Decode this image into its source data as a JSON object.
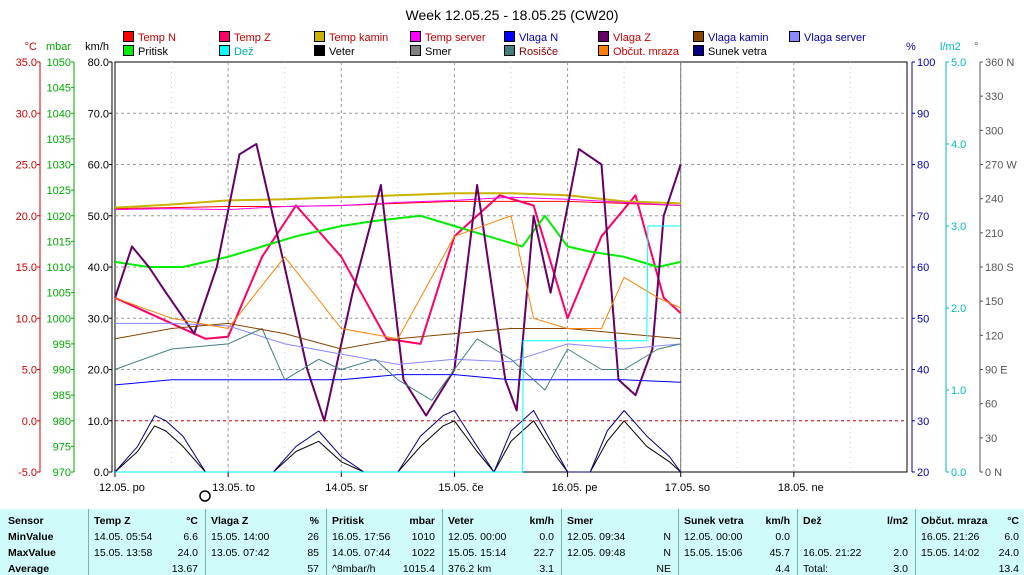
{
  "chart_data": {
    "type": "line",
    "title": "Week 12.05.25 - 18.05.25 (CW20)",
    "x_ticks": [
      "12.05. po",
      "13.05. to",
      "14.05. sr",
      "15.05. če",
      "16.05. pe",
      "17.05. so",
      "18.05. ne"
    ],
    "left_axes": [
      {
        "unit": "°C",
        "color": "#cc0000",
        "ticks": [
          "35.0",
          "30.0",
          "25.0",
          "20.0",
          "15.0",
          "10.0",
          "5.0",
          "0.0",
          "-5.0"
        ]
      },
      {
        "unit": "mbar",
        "color": "#00aa00",
        "ticks": [
          "1050",
          "1045",
          "1040",
          "1035",
          "1030",
          "1025",
          "1020",
          "1015",
          "1010",
          "1005",
          "1000",
          "995",
          "990",
          "985",
          "980",
          "975",
          "970"
        ]
      },
      {
        "unit": "km/h",
        "color": "#000000",
        "ticks": [
          "80.0",
          "70.0",
          "60.0",
          "50.0",
          "40.0",
          "30.0",
          "20.0",
          "10.0",
          "0.0"
        ]
      }
    ],
    "right_axes": [
      {
        "unit": "%",
        "color": "#0000aa",
        "ticks": [
          "100",
          "90",
          "80",
          "70",
          "60",
          "50",
          "40",
          "30",
          "20"
        ]
      },
      {
        "unit": "l/m2",
        "color": "#00bbbb",
        "ticks": [
          "5.0",
          "4.0",
          "3.0",
          "2.0",
          "1.0",
          "0.0"
        ]
      },
      {
        "unit": "°",
        "color": "#555555",
        "ticks": [
          "360 N",
          "330",
          "300",
          "270 W",
          "240",
          "210",
          "180 S",
          "150",
          "120",
          "90 E",
          "60",
          "30",
          "0 N"
        ]
      }
    ],
    "legend": [
      {
        "name": "Temp N",
        "color": "#ff0000"
      },
      {
        "name": "Temp Z",
        "color": "#ff0066"
      },
      {
        "name": "Temp kamin",
        "color": "#c8b400"
      },
      {
        "name": "Temp server",
        "color": "#ff00ff"
      },
      {
        "name": "Vlaga N",
        "color": "#0000ff"
      },
      {
        "name": "Vlaga Z",
        "color": "#660066"
      },
      {
        "name": "Vlaga kamin",
        "color": "#884400"
      },
      {
        "name": "Vlaga server",
        "color": "#8888ff"
      },
      {
        "name": "Pritisk",
        "color": "#00ee00"
      },
      {
        "name": "Dež",
        "color": "#00ffff"
      },
      {
        "name": "Veter",
        "color": "#000000"
      },
      {
        "name": "Smer",
        "color": "#808080"
      },
      {
        "name": "Rosišče",
        "color": "#408080"
      },
      {
        "name": "Občut. mraza",
        "color": "#ff8000"
      },
      {
        "name": "Sunek vetra",
        "color": "#000080"
      }
    ],
    "x_days": 7,
    "series": [
      {
        "name": "Temp N",
        "axis": "temp",
        "color": "#ff0000",
        "x": [
          0,
          0.5,
          1,
          1.5,
          2,
          2.5,
          3,
          3.5,
          4,
          4.5,
          5
        ],
        "y": [
          20.7,
          20.8,
          20.9,
          20.9,
          21.0,
          21.2,
          21.4,
          21.4,
          21.4,
          21.2,
          21.0
        ]
      },
      {
        "name": "Temp Z",
        "axis": "temp",
        "color": "#ff0066",
        "x": [
          0,
          0.4,
          0.8,
          1.0,
          1.3,
          1.6,
          2.0,
          2.4,
          2.7,
          3.0,
          3.4,
          3.7,
          4.0,
          4.3,
          4.6,
          4.85,
          5.0
        ],
        "y": [
          12,
          10,
          8,
          8.2,
          16,
          21,
          16,
          8,
          7.5,
          18,
          22,
          21,
          10,
          18,
          22,
          12,
          10.5
        ]
      },
      {
        "name": "Temp kamin",
        "axis": "temp",
        "color": "#c8b400",
        "x": [
          0,
          0.5,
          1,
          1.5,
          2,
          2.5,
          3,
          3.5,
          4,
          4.5,
          5
        ],
        "y": [
          20.8,
          21.1,
          21.5,
          21.6,
          21.8,
          22.0,
          22.2,
          22.2,
          22.0,
          21.4,
          21.2
        ]
      },
      {
        "name": "Temp server",
        "axis": "temp",
        "color": "#ff00ff",
        "x": [
          0,
          0.5,
          1,
          1.5,
          2,
          2.5,
          3,
          3.5,
          4,
          4.5,
          5
        ],
        "y": [
          20.6,
          20.7,
          20.6,
          20.9,
          21.0,
          21.3,
          21.5,
          21.8,
          21.6,
          21.3,
          21.0
        ]
      },
      {
        "name": "Pritisk",
        "axis": "mbar",
        "color": "#00ee00",
        "x": [
          0,
          0.3,
          0.6,
          1.0,
          1.3,
          1.6,
          2.0,
          2.3,
          2.7,
          3.0,
          3.3,
          3.6,
          3.8,
          4.0,
          4.2,
          4.5,
          4.8,
          5.0
        ],
        "y": [
          1011,
          1010,
          1010,
          1012,
          1014,
          1016,
          1018,
          1019,
          1020,
          1018,
          1016,
          1014,
          1020,
          1014,
          1013,
          1012,
          1010,
          1011
        ]
      },
      {
        "name": "Vlaga Z",
        "axis": "hum",
        "color": "#660066",
        "x": [
          0,
          0.15,
          0.3,
          0.45,
          0.7,
          0.9,
          1.1,
          1.25,
          1.5,
          1.7,
          1.85,
          2.1,
          2.35,
          2.55,
          2.75,
          3.0,
          3.2,
          3.45,
          3.55,
          3.7,
          3.85,
          4.1,
          4.3,
          4.45,
          4.6,
          4.75,
          4.85,
          5.0
        ],
        "y": [
          54,
          64,
          60,
          55,
          47,
          60,
          82,
          84,
          60,
          40,
          30,
          55,
          76,
          38,
          31,
          40,
          76,
          38,
          32,
          70,
          55,
          83,
          80,
          38,
          35,
          44,
          70,
          80
        ]
      },
      {
        "name": "Veter",
        "axis": "wind",
        "color": "#000000",
        "x": [
          0,
          0.2,
          0.35,
          0.45,
          0.6,
          0.8,
          1.0,
          1.2,
          1.4,
          1.6,
          1.8,
          2.0,
          2.2,
          2.35,
          2.5,
          2.7,
          2.9,
          3.0,
          3.2,
          3.35,
          3.5,
          3.7,
          3.9,
          4.0,
          4.2,
          4.35,
          4.5,
          4.7,
          4.9,
          5.0
        ],
        "y": [
          0,
          4,
          9,
          8,
          5,
          0,
          0,
          0,
          0,
          4,
          6,
          2,
          0,
          0,
          0,
          5,
          9,
          10,
          4,
          0,
          6,
          10,
          3,
          0,
          0,
          6,
          10,
          5,
          2,
          0
        ]
      },
      {
        "name": "Sunek vetra",
        "axis": "wind",
        "color": "#000080",
        "x": [
          0,
          0.2,
          0.35,
          0.45,
          0.6,
          0.8,
          1.0,
          1.2,
          1.4,
          1.6,
          1.8,
          2.0,
          2.2,
          2.35,
          2.5,
          2.7,
          2.9,
          3.0,
          3.2,
          3.35,
          3.5,
          3.7,
          3.9,
          4.0,
          4.2,
          4.35,
          4.5,
          4.7,
          4.9,
          5.0
        ],
        "y": [
          0,
          5,
          11,
          10,
          7,
          0,
          0,
          0,
          0,
          5,
          8,
          3,
          0,
          0,
          0,
          7,
          11,
          12,
          5,
          0,
          8,
          12,
          4,
          0,
          0,
          8,
          12,
          7,
          3,
          0
        ]
      },
      {
        "name": "Vlaga N",
        "axis": "hum",
        "color": "#0000ff",
        "x": [
          0,
          0.5,
          1,
          1.5,
          2,
          2.5,
          3,
          3.5,
          4,
          4.5,
          5
        ],
        "y": [
          37,
          38,
          38,
          38,
          38,
          39,
          39,
          38,
          38,
          38,
          37.5
        ]
      },
      {
        "name": "Vlaga server",
        "axis": "hum",
        "color": "#8888ff",
        "x": [
          0,
          0.5,
          1,
          1.5,
          2,
          2.5,
          3,
          3.5,
          4,
          4.5,
          5
        ],
        "y": [
          49,
          49,
          48.5,
          45,
          43,
          41,
          42,
          41.5,
          45,
          44,
          45
        ]
      },
      {
        "name": "Rosišče",
        "axis": "temp",
        "color": "#408080",
        "x": [
          0,
          0.5,
          1,
          1.3,
          1.5,
          1.8,
          2.0,
          2.3,
          2.5,
          2.8,
          3.0,
          3.2,
          3.5,
          3.8,
          4.0,
          4.3,
          4.5,
          4.8,
          5.0
        ],
        "y": [
          5,
          7,
          7.5,
          9,
          4,
          6,
          5,
          6,
          4,
          2,
          5,
          8,
          6,
          3,
          7,
          5,
          5,
          7,
          7.5
        ]
      },
      {
        "name": "Vlaga kamin",
        "axis": "hum",
        "color": "#884400",
        "x": [
          0,
          0.5,
          1,
          1.5,
          2,
          2.5,
          3,
          3.5,
          4,
          4.5,
          5
        ],
        "y": [
          46,
          48,
          49,
          47,
          44,
          46,
          47,
          48,
          48,
          47,
          46
        ]
      },
      {
        "name": "Občut. mraza",
        "axis": "temp",
        "color": "#ff8000",
        "x": [
          0,
          0.5,
          1,
          1.5,
          2,
          2.5,
          3,
          3.5,
          3.7,
          4,
          4.3,
          4.5,
          4.8,
          5.0
        ],
        "y": [
          12,
          10,
          9,
          16,
          9,
          8,
          18,
          20,
          10,
          9,
          9,
          14,
          12,
          11
        ]
      },
      {
        "name": "Dež",
        "axis": "rain",
        "color": "#00ffff",
        "x": [
          0,
          3.6,
          3.61,
          4.0,
          4.4,
          4.7,
          4.71,
          5.0
        ],
        "y": [
          0,
          0,
          1.6,
          1.6,
          1.6,
          1.6,
          3.0,
          3.0
        ]
      }
    ],
    "now_x": 5.0
  },
  "stats": {
    "row_labels": [
      "Sensor",
      "MinValue",
      "MaxValue",
      "Average"
    ],
    "columns": [
      {
        "name": "Temp Z",
        "unit": "°C",
        "rows": [
          [
            "14.05.  05:54",
            "6.6"
          ],
          [
            "15.05.  13:58",
            "24.0"
          ],
          [
            "",
            "13.67"
          ]
        ]
      },
      {
        "name": "Vlaga Z",
        "unit": "%",
        "rows": [
          [
            "15.05.  14:00",
            "26"
          ],
          [
            "13.05.  07:42",
            "85"
          ],
          [
            "",
            "57"
          ]
        ]
      },
      {
        "name": "Pritisk",
        "unit": "mbar",
        "rows": [
          [
            "16.05.  17:56",
            "1010"
          ],
          [
            "14.05.  07:44",
            "1022"
          ],
          [
            "^8mbar/h",
            "1015.4"
          ]
        ]
      },
      {
        "name": "Veter",
        "unit": "km/h",
        "rows": [
          [
            "12.05.  00:00",
            "0.0"
          ],
          [
            "15.05.  15:14",
            "22.7"
          ],
          [
            "376.2 km",
            "3.1"
          ]
        ]
      },
      {
        "name": "Smer",
        "unit": "",
        "rows": [
          [
            "12.05.  09:34",
            "N"
          ],
          [
            "12.05.  09:48",
            "N"
          ],
          [
            "",
            "NE"
          ]
        ]
      },
      {
        "name": "Sunek vetra",
        "unit": "km/h",
        "rows": [
          [
            "12.05.  00:00",
            "0.0"
          ],
          [
            "15.05.  15:06",
            "45.7"
          ],
          [
            "",
            "4.4"
          ]
        ]
      },
      {
        "name": "Dež",
        "unit": "l/m2",
        "rows": [
          [
            "",
            ""
          ],
          [
            "16.05.  21:22",
            "2.0"
          ],
          [
            "Total:",
            "3.0"
          ]
        ]
      },
      {
        "name": "Občut. mraza",
        "unit": "°C",
        "rows": [
          [
            "16.05.  21:26",
            "6.0"
          ],
          [
            "15.05.  14:02",
            "24.0"
          ],
          [
            "",
            "13.4"
          ]
        ]
      }
    ]
  }
}
